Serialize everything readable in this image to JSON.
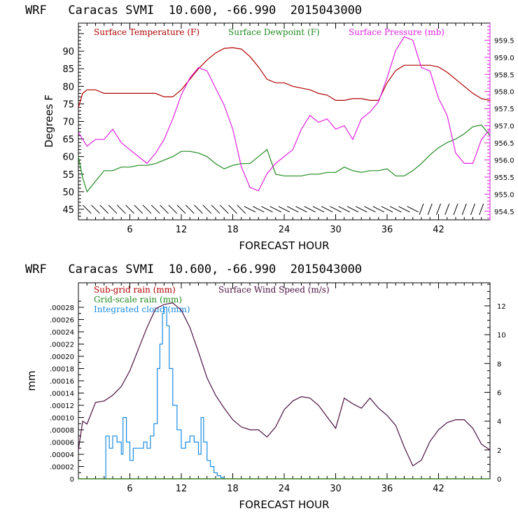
{
  "chart_data": [
    {
      "type": "line",
      "title": "WRF   Caracas SVMI  10.600, -66.990  2015043000",
      "xlabel": "FORECAST HOUR",
      "ylabel": "Degrees F",
      "xlim": [
        0,
        48
      ],
      "ylim": [
        42,
        98
      ],
      "xticks": [
        6,
        12,
        18,
        24,
        30,
        36,
        42
      ],
      "yticks": [
        45,
        50,
        55,
        60,
        65,
        70,
        75,
        80,
        85,
        90
      ],
      "y2lim": [
        954.25,
        960.0
      ],
      "y2ticks": [
        954.5,
        955.0,
        955.5,
        956.0,
        956.5,
        957.0,
        957.5,
        958.0,
        958.5,
        959.0,
        959.5
      ],
      "legend": [
        "Surface Temperature (F)",
        "Surface Dewpoint (F)",
        "Surface Pressure (mb)"
      ],
      "colors": {
        "temperature": "#b00000",
        "dewpoint": "#1f8a1f",
        "pressure": "#e020e0",
        "wind": "#000000"
      },
      "series": [
        {
          "name": "Surface Temperature (F)",
          "axis": "left",
          "x": [
            0,
            0.5,
            1,
            2,
            3,
            4,
            5,
            6,
            7,
            8,
            9,
            10,
            11,
            12,
            13,
            14,
            15,
            16,
            17,
            18,
            19,
            20,
            21,
            22,
            23,
            24,
            25,
            26,
            27,
            28,
            29,
            30,
            31,
            32,
            33,
            34,
            35,
            36,
            37,
            38,
            39,
            40,
            41,
            42,
            43,
            44,
            45,
            46,
            47,
            48
          ],
          "values": [
            74,
            78,
            79,
            79,
            78,
            78,
            78,
            78,
            78,
            78,
            78,
            77,
            77,
            79,
            82,
            85,
            87.5,
            89.5,
            90.8,
            91,
            90.6,
            88.5,
            85.5,
            82,
            81,
            81,
            80,
            79.5,
            79,
            78,
            77.5,
            76,
            76,
            76.5,
            76.5,
            76,
            76,
            81,
            84.5,
            86,
            86,
            86,
            86,
            85.5,
            84,
            82,
            80,
            78,
            76.5,
            76
          ]
        },
        {
          "name": "Surface Dewpoint (F)",
          "axis": "left",
          "x": [
            0,
            0.5,
            1,
            2,
            3,
            4,
            5,
            6,
            7,
            8,
            9,
            10,
            11,
            12,
            13,
            14,
            15,
            16,
            17,
            18,
            19,
            20,
            21,
            22,
            23,
            24,
            25,
            26,
            27,
            28,
            29,
            30,
            31,
            32,
            33,
            34,
            35,
            36,
            37,
            38,
            39,
            40,
            41,
            42,
            43,
            44,
            45,
            46,
            47,
            48
          ],
          "values": [
            60,
            54,
            50,
            53,
            56,
            56,
            57,
            57,
            57.5,
            57.5,
            58,
            59,
            60,
            61.5,
            61.5,
            61,
            60,
            58,
            56.5,
            57.5,
            58,
            58,
            60,
            62,
            55,
            54.5,
            54.5,
            54.5,
            55,
            55,
            55.5,
            55.5,
            57,
            56,
            55.5,
            56,
            56,
            56.5,
            54.5,
            54.5,
            56,
            58,
            60.5,
            62.5,
            64,
            65,
            66.5,
            68.5,
            69,
            66
          ]
        },
        {
          "name": "Surface Pressure (mb)",
          "axis": "right",
          "x": [
            0,
            1,
            2,
            3,
            4,
            5,
            6,
            7,
            8,
            9,
            10,
            11,
            12,
            13,
            14,
            15,
            16,
            17,
            18,
            19,
            20,
            21,
            22,
            23,
            24,
            25,
            26,
            27,
            28,
            29,
            30,
            31,
            32,
            33,
            34,
            35,
            36,
            37,
            38,
            39,
            40,
            41,
            42,
            43,
            44,
            45,
            46,
            47,
            48
          ],
          "values": [
            956.8,
            956.4,
            956.6,
            956.6,
            956.9,
            956.5,
            956.3,
            956.1,
            955.9,
            956.2,
            956.6,
            957.2,
            957.9,
            958.4,
            958.7,
            958.6,
            958.1,
            957.6,
            956.9,
            955.8,
            955.2,
            955.1,
            955.6,
            955.9,
            956.1,
            956.3,
            956.9,
            957.3,
            957.1,
            957.2,
            956.9,
            957.0,
            956.6,
            957.2,
            957.4,
            957.7,
            958.4,
            959.2,
            959.6,
            959.5,
            958.7,
            958.6,
            957.8,
            957.3,
            956.2,
            955.9,
            955.9,
            956.6,
            956.9
          ]
        }
      ],
      "wind_barbs": "row of wind barbs plotted near 45 F across all forecast hours"
    },
    {
      "type": "line",
      "title": "WRF   Caracas SVMI  10.600, -66.990  2015043000",
      "xlabel": "FORECAST HOUR",
      "ylabel": "mm",
      "xlim": [
        0,
        48
      ],
      "ylim": [
        0,
        0.00032
      ],
      "xticks": [
        6,
        12,
        18,
        24,
        30,
        36,
        42
      ],
      "ytick_labels": [
        ".00028",
        ".00026",
        ".00024",
        ".00022",
        ".00020",
        ".00018",
        ".00016",
        ".00014",
        ".00012",
        ".00010",
        ".00008",
        ".00006",
        ".00004",
        ".00002",
        "0"
      ],
      "y2lim": [
        0,
        13.6
      ],
      "y2ticks": [
        0,
        2,
        4,
        6,
        8,
        10,
        12
      ],
      "legend": [
        "Sub-grid rain (mm)",
        "Grid-scale rain (mm)",
        "Integrated cloud (mm)",
        "Surface Wind Speed (m/s)"
      ],
      "colors": {
        "subgrid": "#b00000",
        "gridscale": "#1f8a1f",
        "cloud": "#1a8adf",
        "windspeed": "#4a1040"
      },
      "series": [
        {
          "name": "Surface Wind Speed (m/s)",
          "axis": "right",
          "x": [
            0,
            0.5,
            1,
            2,
            3,
            4,
            5,
            6,
            7,
            8,
            9,
            10,
            11,
            12,
            13,
            14,
            15,
            16,
            17,
            18,
            19,
            20,
            21,
            22,
            23,
            24,
            25,
            26,
            27,
            28,
            29,
            30,
            31,
            32,
            33,
            34,
            35,
            36,
            37,
            38,
            39,
            40,
            41,
            42,
            43,
            44,
            45,
            46,
            47,
            48
          ],
          "values": [
            2,
            4,
            3.8,
            5.3,
            5.4,
            5.8,
            6.4,
            7.5,
            9,
            10.5,
            11.8,
            12.1,
            12.2,
            11.7,
            10.5,
            8.8,
            7,
            5.8,
            4.9,
            4.1,
            3.6,
            3.4,
            3.4,
            2.9,
            3.6,
            4.8,
            5.4,
            5.7,
            5.6,
            5.1,
            4.3,
            3.5,
            5.6,
            5.2,
            4.9,
            5.6,
            4.9,
            4.4,
            3.7,
            2.2,
            0.9,
            1.3,
            2.6,
            3.4,
            3.9,
            4.1,
            4.1,
            3.5,
            2.4,
            2
          ]
        },
        {
          "name": "Integrated cloud (mm)",
          "axis": "left",
          "x": [
            3,
            3.2,
            3.6,
            4,
            4.5,
            5,
            5.2,
            5.6,
            6,
            6.4,
            6.8,
            7.2,
            7.6,
            8,
            8.4,
            8.8,
            9.2,
            9.5,
            9.8,
            10,
            10.3,
            10.6,
            11,
            11.5,
            12,
            12.5,
            13,
            13.5,
            14,
            14.3,
            14.6,
            15,
            15.4,
            15.8,
            16.2,
            16.6,
            17
          ],
          "values": [
            0,
            7e-05,
            5e-05,
            7e-05,
            6e-05,
            4e-05,
            0.0001,
            6e-05,
            3e-05,
            5e-05,
            5e-05,
            5e-05,
            6e-05,
            5e-05,
            7e-05,
            9e-05,
            0.00018,
            0.00022,
            0.00027,
            0.00028,
            0.00025,
            0.00018,
            0.00012,
            8e-05,
            5e-05,
            6e-05,
            7e-05,
            6e-05,
            4e-05,
            0.0001,
            6e-05,
            3e-05,
            2e-05,
            1e-05,
            5e-06,
            2e-06,
            0
          ]
        },
        {
          "name": "Sub-grid rain (mm)",
          "axis": "left",
          "x": [
            0,
            48
          ],
          "values": [
            0,
            0
          ]
        },
        {
          "name": "Grid-scale rain (mm)",
          "axis": "left",
          "x": [
            0,
            48
          ],
          "values": [
            0,
            0
          ]
        }
      ]
    }
  ]
}
